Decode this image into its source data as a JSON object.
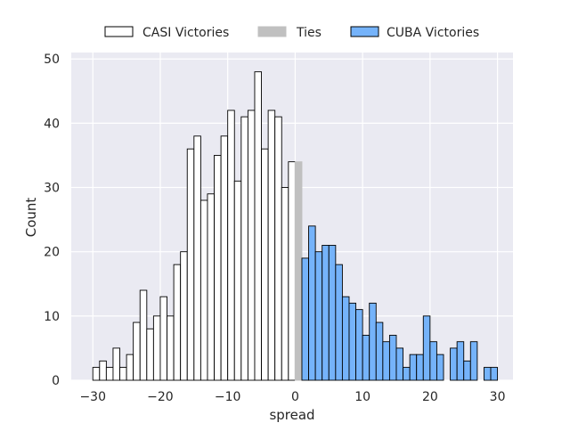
{
  "chart_data": {
    "type": "bar",
    "xlabel": "spread",
    "ylabel": "Count",
    "xlim": [
      -33.2,
      32.3
    ],
    "ylim": [
      0,
      51
    ],
    "xticks": [
      -30,
      -20,
      -10,
      0,
      10,
      20,
      30
    ],
    "yticks": [
      0,
      10,
      20,
      30,
      40,
      50
    ],
    "xtick_labels": [
      "−30",
      "−20",
      "−10",
      "0",
      "10",
      "20",
      "30"
    ],
    "ytick_labels": [
      "0",
      "10",
      "20",
      "30",
      "40",
      "50"
    ],
    "grid": true,
    "background": "#EAEAF2",
    "legend_placement": "top-center, outside plot",
    "legend": [
      {
        "label": "CASI Victories",
        "fill": "#FFFFFF",
        "stroke": "#000000"
      },
      {
        "label": "Ties",
        "fill": "#C0C0C0",
        "stroke": "#C0C0C0"
      },
      {
        "label": "CUBA Victories",
        "fill": "#75B3FA",
        "stroke": "#000000"
      }
    ],
    "series": [
      {
        "name": "CASI Victories",
        "fill": "#FFFFFF",
        "stroke": "#000000",
        "bins": [
          [
            -30,
            2
          ],
          [
            -29,
            3
          ],
          [
            -28,
            2
          ],
          [
            -27,
            5
          ],
          [
            -26,
            2
          ],
          [
            -25,
            4
          ],
          [
            -24,
            9
          ],
          [
            -23,
            14
          ],
          [
            -22,
            8
          ],
          [
            -21,
            10
          ],
          [
            -20,
            13
          ],
          [
            -19,
            10
          ],
          [
            -18,
            18
          ],
          [
            -17,
            20
          ],
          [
            -16,
            36
          ],
          [
            -15,
            38
          ],
          [
            -14,
            28
          ],
          [
            -13,
            29
          ],
          [
            -12,
            35
          ],
          [
            -11,
            38
          ],
          [
            -10,
            42
          ],
          [
            -9,
            31
          ],
          [
            -8,
            41
          ],
          [
            -7,
            42
          ],
          [
            -6,
            48
          ],
          [
            -5,
            36
          ],
          [
            -4,
            42
          ],
          [
            -3,
            41
          ],
          [
            -2,
            30
          ],
          [
            -1,
            34
          ]
        ]
      },
      {
        "name": "Ties",
        "fill": "#C0C0C0",
        "stroke": "#C0C0C0",
        "bins": [
          [
            0,
            34
          ]
        ]
      },
      {
        "name": "CUBA Victories",
        "fill": "#75B3FA",
        "stroke": "#000000",
        "bins": [
          [
            1,
            19
          ],
          [
            2,
            24
          ],
          [
            3,
            20
          ],
          [
            4,
            21
          ],
          [
            5,
            21
          ],
          [
            6,
            18
          ],
          [
            7,
            13
          ],
          [
            8,
            12
          ],
          [
            9,
            11
          ],
          [
            10,
            7
          ],
          [
            11,
            12
          ],
          [
            12,
            9
          ],
          [
            13,
            6
          ],
          [
            14,
            7
          ],
          [
            15,
            5
          ],
          [
            16,
            2
          ],
          [
            17,
            4
          ],
          [
            18,
            4
          ],
          [
            19,
            10
          ],
          [
            20,
            6
          ],
          [
            21,
            4
          ],
          [
            23,
            5
          ],
          [
            24,
            6
          ],
          [
            25,
            3
          ],
          [
            26,
            6
          ],
          [
            28,
            2
          ],
          [
            29,
            2
          ]
        ]
      }
    ]
  }
}
